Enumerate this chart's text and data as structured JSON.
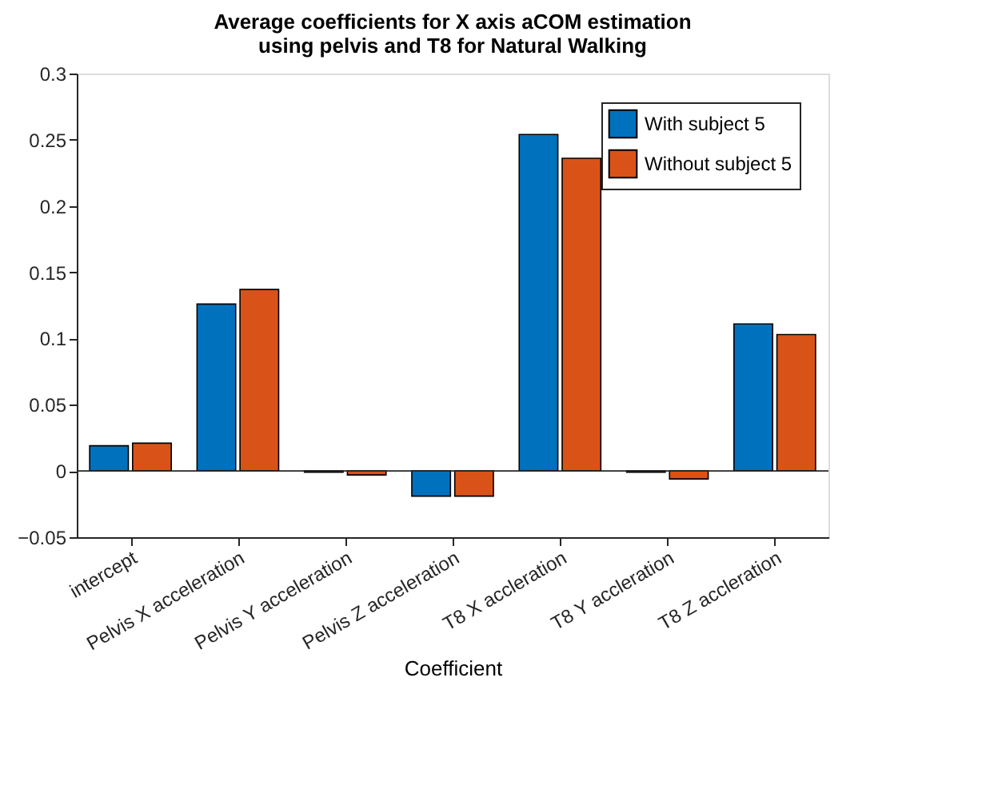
{
  "chart_data": {
    "type": "bar",
    "title": "Average coefficients for X axis aCOM estimation\nusing pelvis and T8 for Natural Walking",
    "xlabel": "Coefficient",
    "categories": [
      "intercept",
      "Pelvis X acceleration",
      "Pelvis Y acceleration",
      "Pelvis Z acceleration",
      "T8 X accleration",
      "T8 Y accleration",
      "T8 Z accleration"
    ],
    "series": [
      {
        "name": "With subject 5",
        "color": "#0072bd",
        "values": [
          0.019,
          0.126,
          -0.001,
          -0.019,
          0.254,
          -0.001,
          0.111
        ]
      },
      {
        "name": "Without subject 5",
        "color": "#d95319",
        "values": [
          0.021,
          0.137,
          -0.003,
          -0.019,
          0.236,
          -0.006,
          0.103
        ]
      }
    ],
    "ylim": [
      -0.05,
      0.3
    ],
    "yticks": [
      -0.05,
      0,
      0.05,
      0.1,
      0.15,
      0.2,
      0.25,
      0.3
    ],
    "ref_lines": [
      {
        "axis": "y",
        "value": 0,
        "color": "#262626"
      }
    ],
    "legend": "top right"
  }
}
